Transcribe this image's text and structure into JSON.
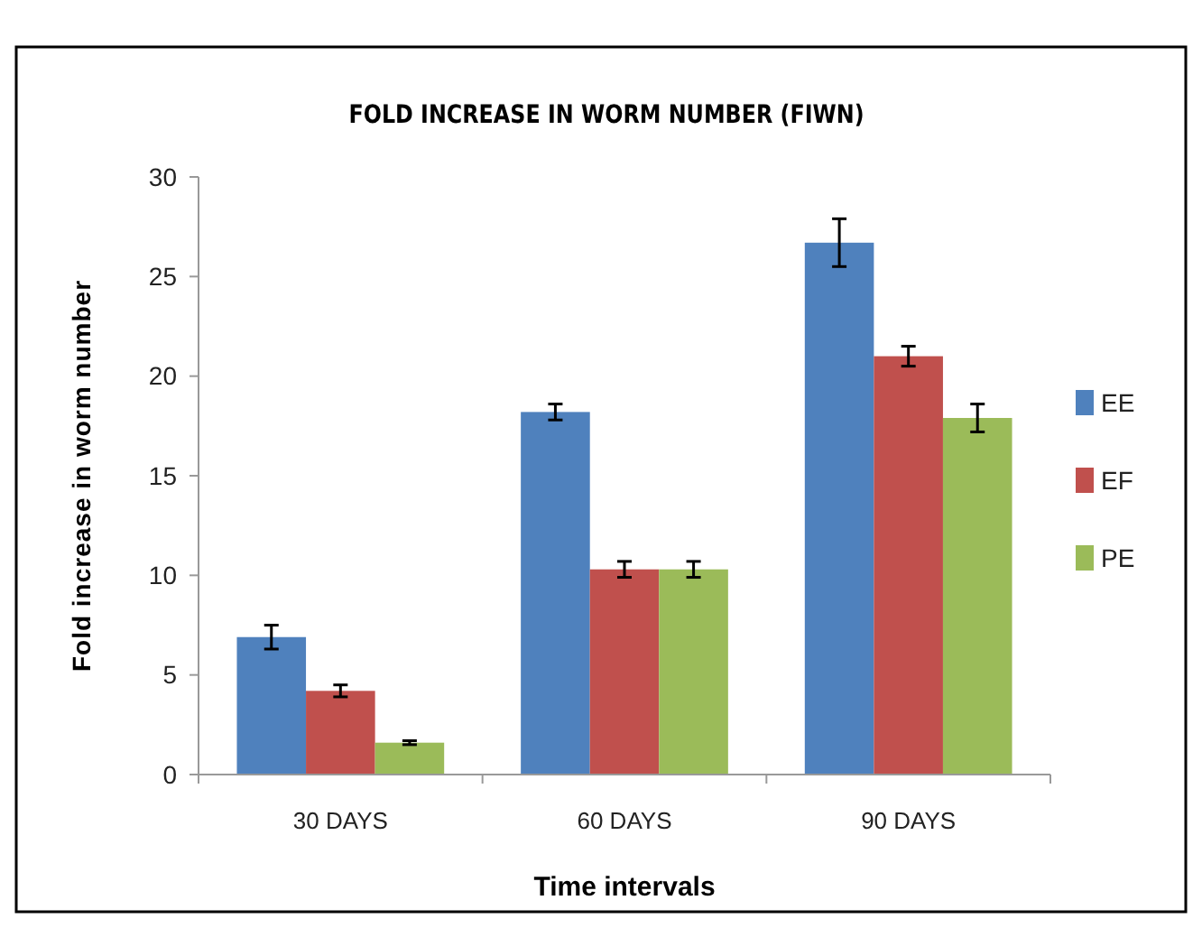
{
  "chart_data": {
    "type": "bar",
    "title": "FOLD INCREASE IN WORM NUMBER (FIWN)",
    "xlabel": "Time intervals",
    "ylabel": "Fold increase in worm number",
    "categories": [
      "30 DAYS",
      "60 DAYS",
      "90 DAYS"
    ],
    "series": [
      {
        "name": "EE",
        "color": "#4f81bd",
        "values": [
          6.9,
          18.2,
          26.7
        ],
        "errors": [
          0.6,
          0.4,
          1.2
        ]
      },
      {
        "name": "EF",
        "color": "#c0504d",
        "values": [
          4.2,
          10.3,
          21.0
        ],
        "errors": [
          0.3,
          0.4,
          0.5
        ]
      },
      {
        "name": "PE",
        "color": "#9bbb59",
        "values": [
          1.6,
          10.3,
          17.9
        ],
        "errors": [
          0.1,
          0.4,
          0.7
        ]
      }
    ],
    "ylim": [
      0,
      30
    ],
    "yticks": [
      0,
      5,
      10,
      15,
      20,
      25,
      30
    ],
    "grid": false,
    "legend": "right"
  }
}
